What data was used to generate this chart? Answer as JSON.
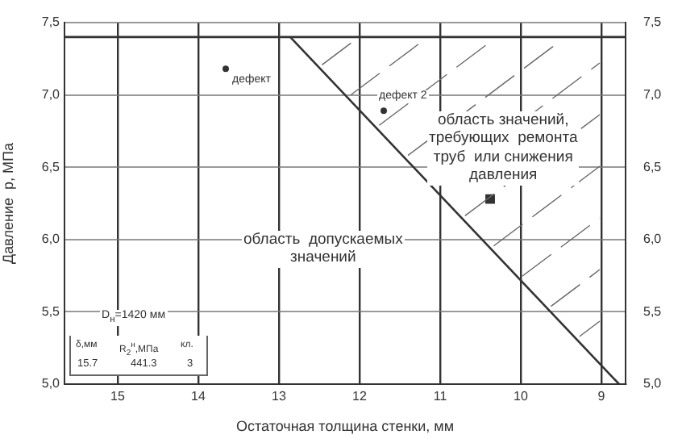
{
  "chart_data": {
    "type": "scatter",
    "xlabel": "Остаточная толщина стенки, мм",
    "ylabel": "Давление  р, МПа",
    "xlim": [
      15.66,
      8.7
    ],
    "xticks": [
      15,
      14,
      13,
      12,
      11,
      10,
      9
    ],
    "ylim": [
      5.0,
      7.5
    ],
    "yticks": [
      {
        "value": 5.0,
        "label": "5,0"
      },
      {
        "value": 5.5,
        "label": "5,5"
      },
      {
        "value": 6.0,
        "label": "6,0"
      },
      {
        "value": 6.5,
        "label": "6,5"
      },
      {
        "value": 7.0,
        "label": "7,0"
      },
      {
        "value": 7.5,
        "label": "7,5"
      }
    ],
    "y2lim": [
      5.0,
      7.5
    ],
    "y2ticks": [
      {
        "value": 5.0,
        "label": "5,0"
      },
      {
        "value": 5.5,
        "label": "5,5"
      },
      {
        "value": 6.0,
        "label": "6,0"
      },
      {
        "value": 6.5,
        "label": "6,5"
      },
      {
        "value": 7.0,
        "label": "7,0"
      },
      {
        "value": 7.5,
        "label": "7,5"
      }
    ],
    "grid": true,
    "legend": false,
    "series": [
      {
        "type": "line",
        "color": "#333333",
        "x": [
          12.86,
          8.78
        ],
        "values": [
          7.4,
          5.0
        ],
        "marker": "none"
      },
      {
        "type": "scatter",
        "color": "#333333",
        "x": [
          13.66,
          11.7
        ],
        "values": [
          7.18,
          6.89
        ],
        "marker": "circle"
      },
      {
        "type": "scatter",
        "color": "#333333",
        "x": [
          10.38
        ],
        "values": [
          6.28
        ],
        "marker": "square"
      }
    ],
    "ref_lines": [
      {
        "axis": "y",
        "value": 7.4,
        "color": "#333333",
        "line_style": "solid"
      }
    ],
    "annotations": [
      {
        "text": "дефект",
        "x": 13.66,
        "y": 7.18
      },
      {
        "text": "дефект 2",
        "x": 11.7,
        "y": 6.89
      },
      "область значений,\nтребующих  ремонта\nтруб  или снижения\nдавления",
      "область  допускаемых\nзначений",
      "D$_{н}$=1420 мм",
      "δ,мм",
      "R$_{2}$$^{н}$,МПа",
      "кл.",
      "15.7",
      "441.3",
      "3"
    ]
  }
}
